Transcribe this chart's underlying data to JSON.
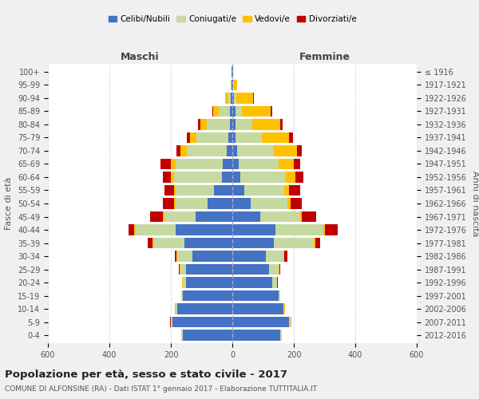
{
  "age_groups": [
    "0-4",
    "5-9",
    "10-14",
    "15-19",
    "20-24",
    "25-29",
    "30-34",
    "35-39",
    "40-44",
    "45-49",
    "50-54",
    "55-59",
    "60-64",
    "65-69",
    "70-74",
    "75-79",
    "80-84",
    "85-89",
    "90-94",
    "95-99",
    "100+"
  ],
  "birth_years": [
    "2012-2016",
    "2007-2011",
    "2002-2006",
    "1997-2001",
    "1992-1996",
    "1987-1991",
    "1982-1986",
    "1977-1981",
    "1972-1976",
    "1967-1971",
    "1962-1966",
    "1957-1961",
    "1952-1956",
    "1947-1951",
    "1942-1946",
    "1937-1941",
    "1932-1936",
    "1927-1931",
    "1922-1926",
    "1917-1921",
    "≤ 1916"
  ],
  "maschi": {
    "celibi": [
      160,
      195,
      180,
      160,
      150,
      150,
      130,
      155,
      185,
      120,
      80,
      60,
      35,
      30,
      18,
      12,
      8,
      8,
      5,
      2,
      2
    ],
    "coniugati": [
      5,
      5,
      5,
      5,
      12,
      20,
      50,
      100,
      130,
      100,
      105,
      125,
      155,
      155,
      130,
      105,
      75,
      35,
      8,
      2,
      0
    ],
    "vedovi": [
      1,
      1,
      1,
      1,
      1,
      2,
      3,
      5,
      5,
      5,
      5,
      5,
      10,
      15,
      20,
      20,
      20,
      20,
      10,
      2,
      0
    ],
    "divorziati": [
      1,
      1,
      1,
      1,
      1,
      3,
      5,
      15,
      18,
      42,
      35,
      30,
      25,
      35,
      15,
      12,
      8,
      2,
      0,
      0,
      0
    ]
  },
  "femmine": {
    "nubili": [
      155,
      185,
      165,
      150,
      130,
      120,
      110,
      135,
      140,
      90,
      60,
      40,
      25,
      20,
      15,
      10,
      10,
      10,
      5,
      3,
      2
    ],
    "coniugate": [
      5,
      5,
      5,
      5,
      15,
      30,
      55,
      130,
      155,
      130,
      120,
      130,
      150,
      130,
      120,
      85,
      55,
      20,
      8,
      2,
      0
    ],
    "vedove": [
      1,
      1,
      1,
      1,
      1,
      2,
      3,
      5,
      5,
      5,
      10,
      15,
      30,
      50,
      75,
      90,
      90,
      95,
      55,
      10,
      0
    ],
    "divorziate": [
      1,
      1,
      1,
      1,
      1,
      3,
      10,
      15,
      42,
      48,
      35,
      35,
      25,
      20,
      15,
      12,
      8,
      5,
      2,
      0,
      0
    ]
  },
  "colors": {
    "celibi": "#4472c4",
    "coniugati": "#c5d9a0",
    "vedovi": "#ffc000",
    "divorziati": "#c00000"
  },
  "legend_labels": [
    "Celibi/Nubili",
    "Coniugati/e",
    "Vedovi/e",
    "Divorziati/e"
  ],
  "xlim": 600,
  "title": "Popolazione per età, sesso e stato civile - 2017",
  "subtitle": "COMUNE DI ALFONSINE (RA) - Dati ISTAT 1° gennaio 2017 - Elaborazione TUTTITALIA.IT",
  "ylabel_left": "Fasce di età",
  "ylabel_right": "Anni di nascita",
  "xlabel_maschi": "Maschi",
  "xlabel_femmine": "Femmine",
  "bg_color": "#f0f0f0",
  "plot_bg": "#ffffff"
}
